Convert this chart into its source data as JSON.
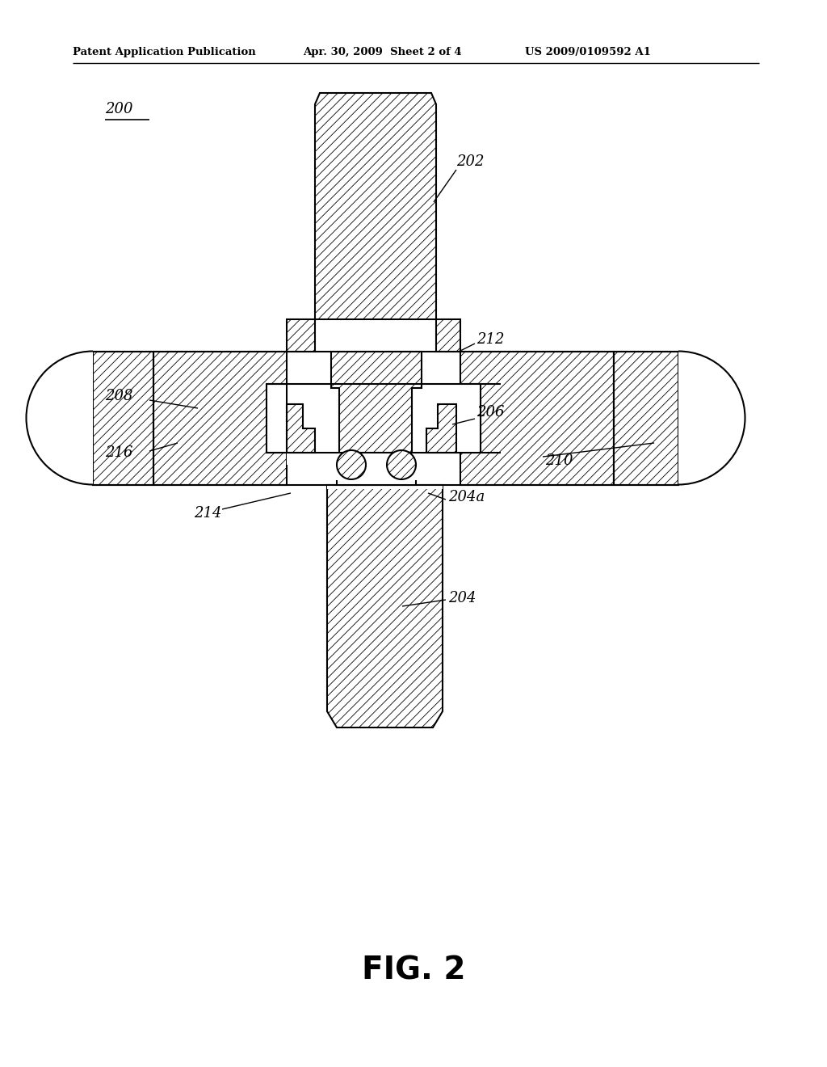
{
  "bg_color": "#ffffff",
  "line_color": "#000000",
  "fig_width": 10.24,
  "fig_height": 13.2,
  "header_left": "Patent Application Publication",
  "header_center": "Apr. 30, 2009  Sheet 2 of 4",
  "header_right": "US 2009/0109592 A1",
  "fig_label": "FIG. 2",
  "hatch_density": "///",
  "hatch_lw": 0.6
}
